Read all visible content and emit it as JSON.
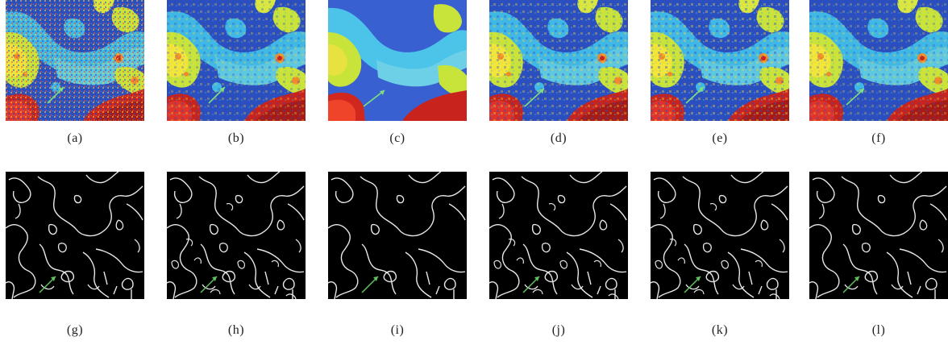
{
  "figure": {
    "heatmap_captions": [
      "(a)",
      "(b)",
      "(c)",
      "(d)",
      "(e)",
      "(f)"
    ],
    "edge_captions": [
      "(g)",
      "(h)",
      "(i)",
      "(j)",
      "(k)",
      "(l)"
    ],
    "colors": {
      "deep_blue": "#1f3a9a",
      "mid_blue": "#2f55c6",
      "cyan": "#3fb8e6",
      "green_yellow": "#c8e43a",
      "yellow": "#f2e63a",
      "orange": "#f08a2a",
      "red": "#c8231c",
      "edge_line": "#e8e8e8",
      "arrow": "#5ec25e",
      "edge_background": "#000000"
    }
  }
}
